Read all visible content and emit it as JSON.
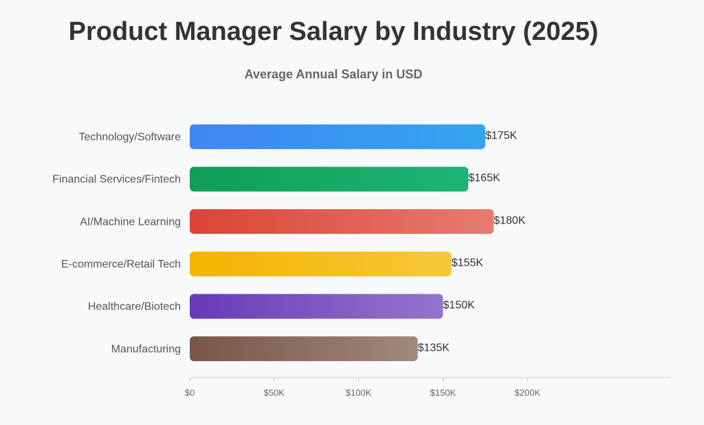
{
  "chart_data": {
    "type": "bar",
    "orientation": "horizontal",
    "title": "Product Manager Salary by Industry (2025)",
    "subtitle": "Average Annual Salary in USD",
    "categories": [
      "Technology/Software",
      "Financial Services/Fintech",
      "AI/Machine Learning",
      "E-commerce/Retail Tech",
      "Healthcare/Biotech",
      "Manufacturing"
    ],
    "values": [
      175000,
      165000,
      180000,
      155000,
      150000,
      135000
    ],
    "value_labels": [
      "$175K",
      "$165K",
      "$180K",
      "$155K",
      "$150K",
      "$135K"
    ],
    "colors": [
      [
        "#4285f4",
        "#33a6ef"
      ],
      [
        "#0f9d58",
        "#1db574"
      ],
      [
        "#db4437",
        "#e87b70"
      ],
      [
        "#f4b400",
        "#f6c83a"
      ],
      [
        "#673ab7",
        "#9575cd"
      ],
      [
        "#795548",
        "#a1887f"
      ]
    ],
    "xlim": [
      0,
      285000
    ],
    "xticks": [
      {
        "value": 0,
        "label": "$0"
      },
      {
        "value": 50000,
        "label": "$50K"
      },
      {
        "value": 100000,
        "label": "$100K"
      },
      {
        "value": 150000,
        "label": "$150K"
      },
      {
        "value": 200000,
        "label": "$200K"
      }
    ],
    "grid": false
  }
}
